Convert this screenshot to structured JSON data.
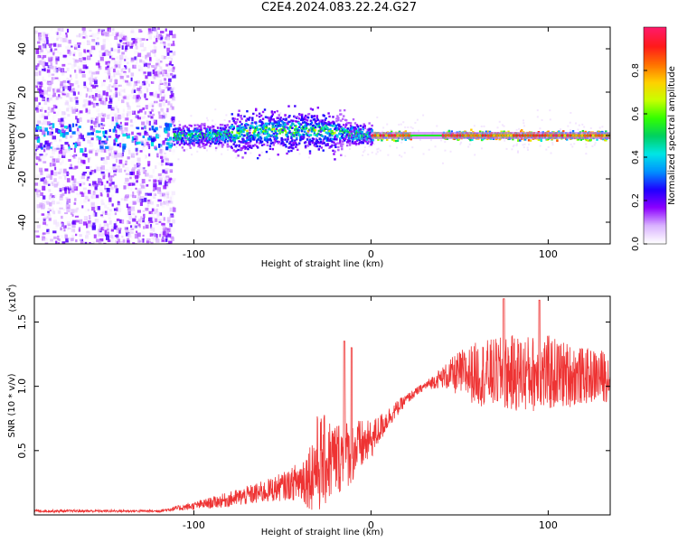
{
  "title": "C2E4.2024.083.22.24.G27",
  "chart_data": [
    {
      "type": "heatmap",
      "xlabel": "Height of straight line (km)",
      "ylabel": "Frequency (Hz)",
      "xlim": [
        -190,
        135
      ],
      "ylim": [
        -50,
        50
      ],
      "xticks": [
        -100,
        0,
        100
      ],
      "yticks": [
        -40,
        -20,
        0,
        20,
        40
      ],
      "grid": false,
      "colorbar": {
        "label": "Normalized spectral amplitude",
        "range": [
          0,
          1
        ],
        "ticks": [
          0.0,
          0.2,
          0.4,
          0.6,
          0.8
        ],
        "colormap": [
          "#ffffff",
          "#d9b3ff",
          "#8c00ff",
          "#1f00ff",
          "#0090ff",
          "#00e6e6",
          "#00d060",
          "#33ff00",
          "#c8ff00",
          "#ffd000",
          "#ff7000",
          "#ff1a1a",
          "#ff1a66"
        ]
      },
      "features": {
        "noisy_band_x": [
          -190,
          -112
        ],
        "signal_line_x": [
          -112,
          135
        ],
        "coherent_carrier_x": [
          0,
          135
        ],
        "carrier_frequency_hz": 0
      }
    },
    {
      "type": "line",
      "xlabel": "Height of straight line (km)",
      "ylabel": "SNR (10 * v/v)",
      "y_multiplier": "(x10",
      "y_multiplier_exp": "4",
      "y_multiplier_close": ")",
      "xlim": [
        -190,
        135
      ],
      "ylim": [
        0,
        1.7
      ],
      "xticks": [
        -100,
        0,
        100
      ],
      "yticks": [
        0.5,
        1.0,
        1.5
      ],
      "ytick_labels": [
        "0.5",
        "1.0",
        "1.5"
      ],
      "color": "#ee3333",
      "grid": false,
      "trend": {
        "x": [
          -190,
          -160,
          -120,
          -100,
          -80,
          -60,
          -45,
          -35,
          -30,
          -20,
          -10,
          0,
          10,
          20,
          30,
          40,
          50,
          60,
          80,
          100,
          120,
          135
        ],
        "mean": [
          0.03,
          0.03,
          0.03,
          0.07,
          0.12,
          0.18,
          0.24,
          0.3,
          0.4,
          0.44,
          0.5,
          0.58,
          0.76,
          0.9,
          1.0,
          1.07,
          1.1,
          1.1,
          1.1,
          1.1,
          1.08,
          1.08
        ],
        "spread": [
          0.01,
          0.01,
          0.01,
          0.03,
          0.06,
          0.09,
          0.12,
          0.25,
          0.4,
          0.3,
          0.25,
          0.15,
          0.08,
          0.04,
          0.03,
          0.08,
          0.18,
          0.25,
          0.3,
          0.3,
          0.22,
          0.2
        ]
      },
      "peaks": [
        {
          "x": -15,
          "y": 1.35
        },
        {
          "x": -11,
          "y": 1.3
        },
        {
          "x": 75,
          "y": 1.68
        },
        {
          "x": 95,
          "y": 1.67
        }
      ]
    }
  ]
}
